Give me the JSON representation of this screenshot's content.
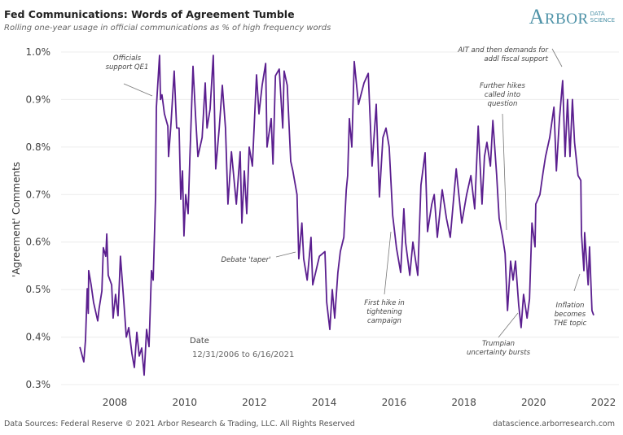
{
  "header": {
    "title": "Fed Communications: Words of Agreement Tumble",
    "subtitle": "Rolling one-year usage in official communications as % of high frequency words",
    "logo_text": "ARBOR",
    "logo_sub": "DATA SCIENCE"
  },
  "footer": {
    "source": "Data Sources: Federal Reserve © 2021 Arbor Research & Trading, LLC. All Rights Reserved",
    "url": "datascience.arborresearch.com"
  },
  "legend": {
    "title": "Date",
    "range": "12/31/2006 to 6/16/2021"
  },
  "chart_data": {
    "type": "line",
    "title": "Fed Communications: Words of Agreement Tumble",
    "subtitle": "Rolling one-year usage in official communications as % of high frequency words",
    "xlabel": "",
    "ylabel": "'Agreement' Comments",
    "xlim": [
      2006.6,
      2022.3
    ],
    "ylim": [
      0.3,
      1.0
    ],
    "x_ticks": [
      2008,
      2010,
      2012,
      2014,
      2016,
      2018,
      2020,
      2022
    ],
    "y_ticks": [
      0.3,
      0.4,
      0.5,
      0.6,
      0.7,
      0.8,
      0.9,
      1.0
    ],
    "y_tick_labels": [
      "0.3%",
      "0.4%",
      "0.5%",
      "0.6%",
      "0.7%",
      "0.8%",
      "0.9%",
      "1.0%"
    ],
    "grid": "horizontal",
    "color": "#5b1f8f",
    "x": [
      2007.0,
      2007.11,
      2007.16,
      2007.21,
      2007.24,
      2007.25,
      2007.32,
      2007.39,
      2007.51,
      2007.55,
      2007.63,
      2007.67,
      2007.74,
      2007.77,
      2007.81,
      2007.91,
      2007.95,
      2008.02,
      2008.09,
      2008.16,
      2008.26,
      2008.33,
      2008.4,
      2008.49,
      2008.56,
      2008.63,
      2008.7,
      2008.77,
      2008.84,
      2008.91,
      2008.98,
      2009.05,
      2009.1,
      2009.17,
      2009.19,
      2009.28,
      2009.31,
      2009.35,
      2009.42,
      2009.52,
      2009.54,
      2009.61,
      2009.7,
      2009.77,
      2009.84,
      2009.89,
      2009.94,
      2009.98,
      2010.03,
      2010.1,
      2010.15,
      2010.24,
      2010.31,
      2010.38,
      2010.5,
      2010.59,
      2010.64,
      2010.73,
      2010.82,
      2010.89,
      2010.99,
      2011.08,
      2011.17,
      2011.24,
      2011.34,
      2011.48,
      2011.59,
      2011.64,
      2011.71,
      2011.78,
      2011.85,
      2011.94,
      2012.06,
      2012.13,
      2012.22,
      2012.32,
      2012.36,
      2012.48,
      2012.53,
      2012.6,
      2012.71,
      2012.81,
      2012.85,
      2012.94,
      2013.04,
      2013.1,
      2013.22,
      2013.27,
      2013.36,
      2013.41,
      2013.51,
      2013.62,
      2013.67,
      2013.86,
      2014.02,
      2014.07,
      2014.16,
      2014.23,
      2014.3,
      2014.39,
      2014.46,
      2014.56,
      2014.63,
      2014.67,
      2014.72,
      2014.79,
      2014.86,
      2014.98,
      2015.14,
      2015.26,
      2015.37,
      2015.49,
      2015.58,
      2015.68,
      2015.77,
      2015.86,
      2015.96,
      2016.07,
      2016.19,
      2016.28,
      2016.33,
      2016.45,
      2016.54,
      2016.68,
      2016.77,
      2016.89,
      2016.96,
      2017.08,
      2017.15,
      2017.24,
      2017.38,
      2017.5,
      2017.61,
      2017.78,
      2017.94,
      2018.08,
      2018.2,
      2018.31,
      2018.41,
      2018.52,
      2018.59,
      2018.66,
      2018.76,
      2018.83,
      2018.94,
      2019.01,
      2019.11,
      2019.18,
      2019.25,
      2019.34,
      2019.41,
      2019.48,
      2019.57,
      2019.64,
      2019.71,
      2019.81,
      2019.88,
      2019.95,
      2020.04,
      2020.06,
      2020.18,
      2020.27,
      2020.34,
      2020.46,
      2020.58,
      2020.65,
      2020.74,
      2020.83,
      2020.9,
      2020.97,
      2021.04,
      2021.11,
      2021.17,
      2021.27,
      2021.35,
      2021.37,
      2021.44,
      2021.46,
      2021.56,
      2021.6,
      2021.67,
      2021.72
    ],
    "y": [
      0.379,
      0.348,
      0.394,
      0.502,
      0.45,
      0.54,
      0.51,
      0.473,
      0.434,
      0.46,
      0.497,
      0.588,
      0.57,
      0.617,
      0.53,
      0.51,
      0.44,
      0.49,
      0.445,
      0.57,
      0.473,
      0.4,
      0.42,
      0.365,
      0.336,
      0.41,
      0.36,
      0.377,
      0.32,
      0.416,
      0.38,
      0.54,
      0.52,
      0.7,
      0.883,
      0.993,
      0.9,
      0.91,
      0.87,
      0.844,
      0.78,
      0.85,
      0.96,
      0.84,
      0.84,
      0.69,
      0.75,
      0.613,
      0.7,
      0.66,
      0.776,
      0.97,
      0.87,
      0.78,
      0.82,
      0.935,
      0.84,
      0.88,
      0.993,
      0.754,
      0.84,
      0.93,
      0.84,
      0.68,
      0.79,
      0.68,
      0.79,
      0.64,
      0.75,
      0.66,
      0.8,
      0.76,
      0.952,
      0.87,
      0.93,
      0.976,
      0.8,
      0.86,
      0.764,
      0.95,
      0.964,
      0.84,
      0.96,
      0.93,
      0.77,
      0.75,
      0.7,
      0.565,
      0.64,
      0.565,
      0.52,
      0.61,
      0.51,
      0.57,
      0.58,
      0.473,
      0.416,
      0.5,
      0.44,
      0.536,
      0.58,
      0.61,
      0.71,
      0.74,
      0.86,
      0.8,
      0.98,
      0.89,
      0.935,
      0.955,
      0.76,
      0.89,
      0.695,
      0.82,
      0.84,
      0.8,
      0.656,
      0.587,
      0.536,
      0.67,
      0.6,
      0.53,
      0.6,
      0.53,
      0.72,
      0.788,
      0.622,
      0.68,
      0.7,
      0.61,
      0.71,
      0.65,
      0.61,
      0.754,
      0.64,
      0.7,
      0.74,
      0.67,
      0.844,
      0.68,
      0.78,
      0.81,
      0.76,
      0.856,
      0.74,
      0.65,
      0.61,
      0.576,
      0.456,
      0.56,
      0.52,
      0.56,
      0.468,
      0.42,
      0.49,
      0.44,
      0.48,
      0.64,
      0.59,
      0.68,
      0.7,
      0.747,
      0.78,
      0.82,
      0.884,
      0.75,
      0.86,
      0.94,
      0.78,
      0.9,
      0.78,
      0.9,
      0.81,
      0.74,
      0.73,
      0.617,
      0.54,
      0.62,
      0.51,
      0.59,
      0.456,
      0.446
    ],
    "annotations": [
      {
        "text": "Officials\nsupport QE1"
      },
      {
        "text": "Debate 'taper'"
      },
      {
        "text": "First hike in\ntightening\ncampaign"
      },
      {
        "text": "Further hikes\ncalled into\nquestion"
      },
      {
        "text": "AIT and then demands for\naddl fiscal support"
      },
      {
        "text": "Trumpian\nuncertainty bursts"
      },
      {
        "text": "Inflation\nbecomes\nTHE topic"
      }
    ]
  }
}
